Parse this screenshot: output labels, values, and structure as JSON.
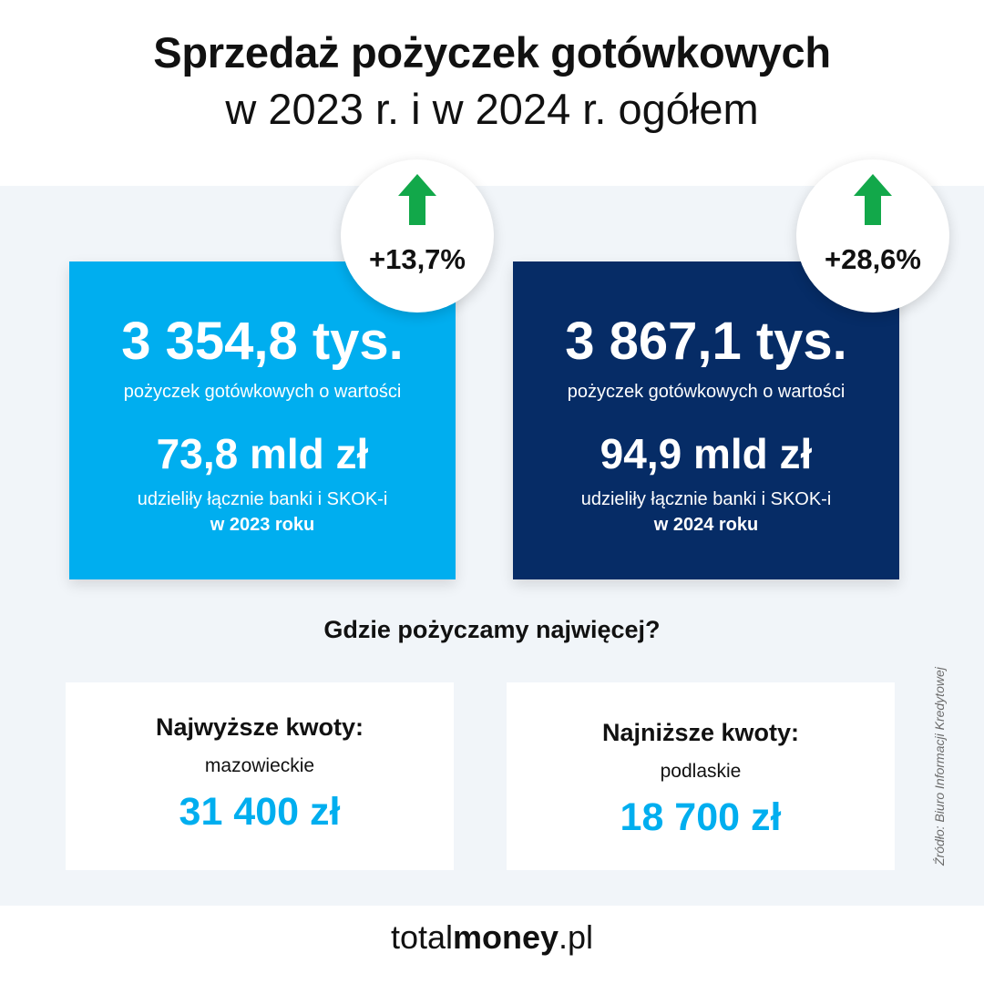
{
  "title": {
    "line1": "Sprzedaż pożyczek gotówkowych",
    "line2": "w 2023 r. i w 2024 r. ogółem"
  },
  "cards": [
    {
      "count": "3 354,8 tys.",
      "count_caption": "pożyczek gotówkowych o wartości",
      "amount": "73,8 mld zł",
      "amount_caption": "udzieliły łącznie  banki i SKOK-i",
      "year_caption": "w 2023 roku",
      "growth": "+13,7%",
      "color": "#00aeef"
    },
    {
      "count": "3 867,1 tys.",
      "count_caption": "pożyczek gotówkowych o wartości",
      "amount": "94,9 mld zł",
      "amount_caption": "udzieliły łącznie  banki i SKOK-i",
      "year_caption": "w 2024 roku",
      "growth": "+28,6%",
      "color": "#062c66"
    }
  ],
  "growth_arrow": {
    "icon": "up-arrow-icon",
    "color": "#12a84a"
  },
  "question": "Gdzie pożyczamy najwięcej?",
  "highest": {
    "heading": "Najwyższe kwoty:",
    "region": "mazowieckie",
    "value": "31 400 zł"
  },
  "lowest": {
    "heading": "Najniższe kwoty:",
    "region": "podlaskie",
    "value": "18 700 zł"
  },
  "source": "Źródło: Biuro Informacji Kredytowej",
  "footer": {
    "part1": "total",
    "part2": "money",
    "part3": ".pl"
  }
}
